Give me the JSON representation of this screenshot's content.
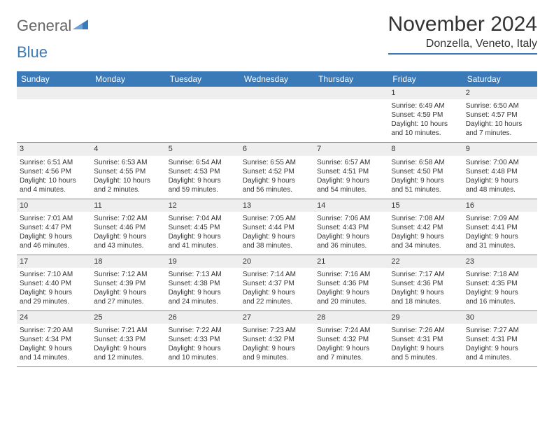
{
  "logo": {
    "text_general": "General",
    "text_blue": "Blue"
  },
  "title": "November 2024",
  "location": "Donzella, Veneto, Italy",
  "colors": {
    "header_bg": "#3a7ab8",
    "header_text": "#ffffff",
    "daynum_bg": "#eeeeee",
    "border": "#888888",
    "body_text": "#333333"
  },
  "day_names": [
    "Sunday",
    "Monday",
    "Tuesday",
    "Wednesday",
    "Thursday",
    "Friday",
    "Saturday"
  ],
  "weeks": [
    [
      null,
      null,
      null,
      null,
      null,
      {
        "n": "1",
        "sunrise": "Sunrise: 6:49 AM",
        "sunset": "Sunset: 4:59 PM",
        "daylight1": "Daylight: 10 hours",
        "daylight2": "and 10 minutes."
      },
      {
        "n": "2",
        "sunrise": "Sunrise: 6:50 AM",
        "sunset": "Sunset: 4:57 PM",
        "daylight1": "Daylight: 10 hours",
        "daylight2": "and 7 minutes."
      }
    ],
    [
      {
        "n": "3",
        "sunrise": "Sunrise: 6:51 AM",
        "sunset": "Sunset: 4:56 PM",
        "daylight1": "Daylight: 10 hours",
        "daylight2": "and 4 minutes."
      },
      {
        "n": "4",
        "sunrise": "Sunrise: 6:53 AM",
        "sunset": "Sunset: 4:55 PM",
        "daylight1": "Daylight: 10 hours",
        "daylight2": "and 2 minutes."
      },
      {
        "n": "5",
        "sunrise": "Sunrise: 6:54 AM",
        "sunset": "Sunset: 4:53 PM",
        "daylight1": "Daylight: 9 hours",
        "daylight2": "and 59 minutes."
      },
      {
        "n": "6",
        "sunrise": "Sunrise: 6:55 AM",
        "sunset": "Sunset: 4:52 PM",
        "daylight1": "Daylight: 9 hours",
        "daylight2": "and 56 minutes."
      },
      {
        "n": "7",
        "sunrise": "Sunrise: 6:57 AM",
        "sunset": "Sunset: 4:51 PM",
        "daylight1": "Daylight: 9 hours",
        "daylight2": "and 54 minutes."
      },
      {
        "n": "8",
        "sunrise": "Sunrise: 6:58 AM",
        "sunset": "Sunset: 4:50 PM",
        "daylight1": "Daylight: 9 hours",
        "daylight2": "and 51 minutes."
      },
      {
        "n": "9",
        "sunrise": "Sunrise: 7:00 AM",
        "sunset": "Sunset: 4:48 PM",
        "daylight1": "Daylight: 9 hours",
        "daylight2": "and 48 minutes."
      }
    ],
    [
      {
        "n": "10",
        "sunrise": "Sunrise: 7:01 AM",
        "sunset": "Sunset: 4:47 PM",
        "daylight1": "Daylight: 9 hours",
        "daylight2": "and 46 minutes."
      },
      {
        "n": "11",
        "sunrise": "Sunrise: 7:02 AM",
        "sunset": "Sunset: 4:46 PM",
        "daylight1": "Daylight: 9 hours",
        "daylight2": "and 43 minutes."
      },
      {
        "n": "12",
        "sunrise": "Sunrise: 7:04 AM",
        "sunset": "Sunset: 4:45 PM",
        "daylight1": "Daylight: 9 hours",
        "daylight2": "and 41 minutes."
      },
      {
        "n": "13",
        "sunrise": "Sunrise: 7:05 AM",
        "sunset": "Sunset: 4:44 PM",
        "daylight1": "Daylight: 9 hours",
        "daylight2": "and 38 minutes."
      },
      {
        "n": "14",
        "sunrise": "Sunrise: 7:06 AM",
        "sunset": "Sunset: 4:43 PM",
        "daylight1": "Daylight: 9 hours",
        "daylight2": "and 36 minutes."
      },
      {
        "n": "15",
        "sunrise": "Sunrise: 7:08 AM",
        "sunset": "Sunset: 4:42 PM",
        "daylight1": "Daylight: 9 hours",
        "daylight2": "and 34 minutes."
      },
      {
        "n": "16",
        "sunrise": "Sunrise: 7:09 AM",
        "sunset": "Sunset: 4:41 PM",
        "daylight1": "Daylight: 9 hours",
        "daylight2": "and 31 minutes."
      }
    ],
    [
      {
        "n": "17",
        "sunrise": "Sunrise: 7:10 AM",
        "sunset": "Sunset: 4:40 PM",
        "daylight1": "Daylight: 9 hours",
        "daylight2": "and 29 minutes."
      },
      {
        "n": "18",
        "sunrise": "Sunrise: 7:12 AM",
        "sunset": "Sunset: 4:39 PM",
        "daylight1": "Daylight: 9 hours",
        "daylight2": "and 27 minutes."
      },
      {
        "n": "19",
        "sunrise": "Sunrise: 7:13 AM",
        "sunset": "Sunset: 4:38 PM",
        "daylight1": "Daylight: 9 hours",
        "daylight2": "and 24 minutes."
      },
      {
        "n": "20",
        "sunrise": "Sunrise: 7:14 AM",
        "sunset": "Sunset: 4:37 PM",
        "daylight1": "Daylight: 9 hours",
        "daylight2": "and 22 minutes."
      },
      {
        "n": "21",
        "sunrise": "Sunrise: 7:16 AM",
        "sunset": "Sunset: 4:36 PM",
        "daylight1": "Daylight: 9 hours",
        "daylight2": "and 20 minutes."
      },
      {
        "n": "22",
        "sunrise": "Sunrise: 7:17 AM",
        "sunset": "Sunset: 4:36 PM",
        "daylight1": "Daylight: 9 hours",
        "daylight2": "and 18 minutes."
      },
      {
        "n": "23",
        "sunrise": "Sunrise: 7:18 AM",
        "sunset": "Sunset: 4:35 PM",
        "daylight1": "Daylight: 9 hours",
        "daylight2": "and 16 minutes."
      }
    ],
    [
      {
        "n": "24",
        "sunrise": "Sunrise: 7:20 AM",
        "sunset": "Sunset: 4:34 PM",
        "daylight1": "Daylight: 9 hours",
        "daylight2": "and 14 minutes."
      },
      {
        "n": "25",
        "sunrise": "Sunrise: 7:21 AM",
        "sunset": "Sunset: 4:33 PM",
        "daylight1": "Daylight: 9 hours",
        "daylight2": "and 12 minutes."
      },
      {
        "n": "26",
        "sunrise": "Sunrise: 7:22 AM",
        "sunset": "Sunset: 4:33 PM",
        "daylight1": "Daylight: 9 hours",
        "daylight2": "and 10 minutes."
      },
      {
        "n": "27",
        "sunrise": "Sunrise: 7:23 AM",
        "sunset": "Sunset: 4:32 PM",
        "daylight1": "Daylight: 9 hours",
        "daylight2": "and 9 minutes."
      },
      {
        "n": "28",
        "sunrise": "Sunrise: 7:24 AM",
        "sunset": "Sunset: 4:32 PM",
        "daylight1": "Daylight: 9 hours",
        "daylight2": "and 7 minutes."
      },
      {
        "n": "29",
        "sunrise": "Sunrise: 7:26 AM",
        "sunset": "Sunset: 4:31 PM",
        "daylight1": "Daylight: 9 hours",
        "daylight2": "and 5 minutes."
      },
      {
        "n": "30",
        "sunrise": "Sunrise: 7:27 AM",
        "sunset": "Sunset: 4:31 PM",
        "daylight1": "Daylight: 9 hours",
        "daylight2": "and 4 minutes."
      }
    ]
  ]
}
